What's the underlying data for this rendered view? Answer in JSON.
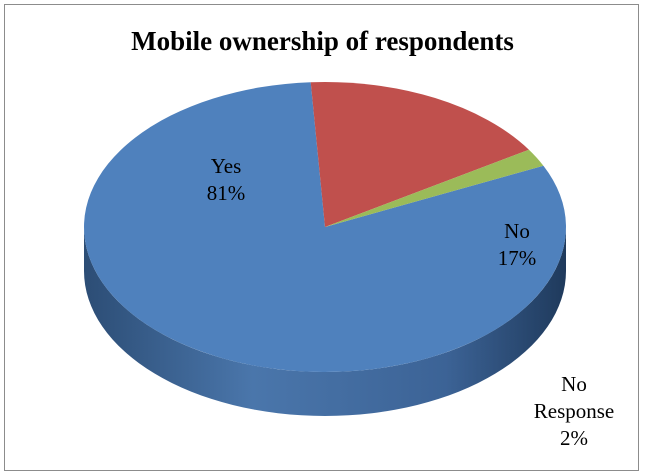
{
  "chart_data": {
    "type": "pie",
    "title": "Mobile ownership of respondents",
    "three_d": true,
    "legend": "none",
    "slices": [
      {
        "label": "Yes",
        "value": 81,
        "value_label": "81%",
        "color": "#4f81bd"
      },
      {
        "label": "No",
        "value": 17,
        "value_label": "17%",
        "color": "#c0504d"
      },
      {
        "label": "No Response",
        "value": 2,
        "value_label": "2%",
        "color": "#9bbb59"
      }
    ]
  }
}
